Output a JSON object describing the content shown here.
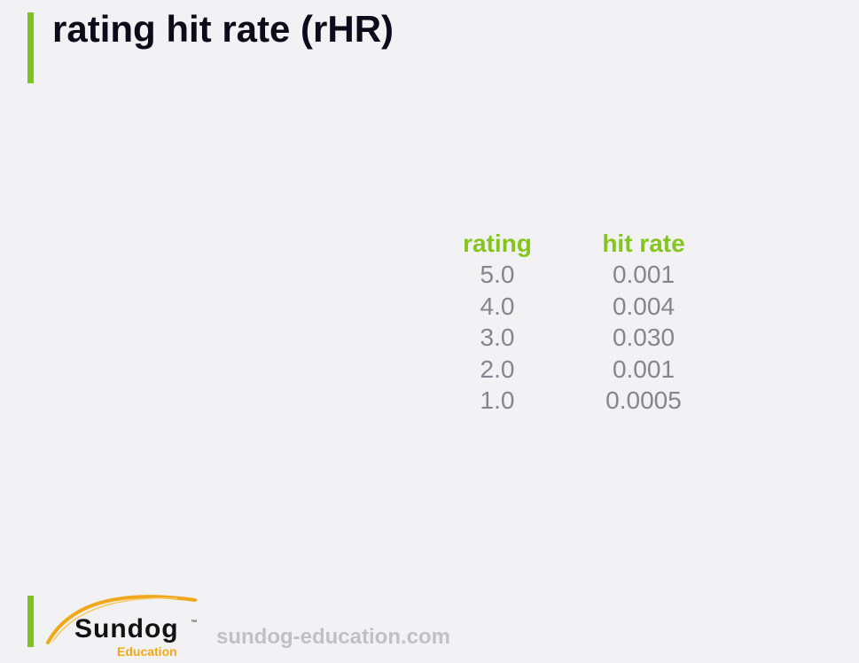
{
  "slide": {
    "title": "rating hit rate (rHR)"
  },
  "table": {
    "headers": [
      "rating",
      "hit rate"
    ],
    "rows": [
      [
        "5.0",
        "0.001"
      ],
      [
        "4.0",
        "0.004"
      ],
      [
        "3.0",
        "0.030"
      ],
      [
        "2.0",
        "0.001"
      ],
      [
        "1.0",
        "0.0005"
      ]
    ]
  },
  "footer": {
    "logo_name": "Sundog",
    "logo_tm": "™",
    "logo_sub": "Education",
    "site": "sundog-education.com"
  },
  "colors": {
    "accent_green": "#7ec41e",
    "header_green": "#86c51f",
    "value_gray": "#85858f",
    "logo_orange": "#f0a81a",
    "background": "#f2f2f4"
  }
}
